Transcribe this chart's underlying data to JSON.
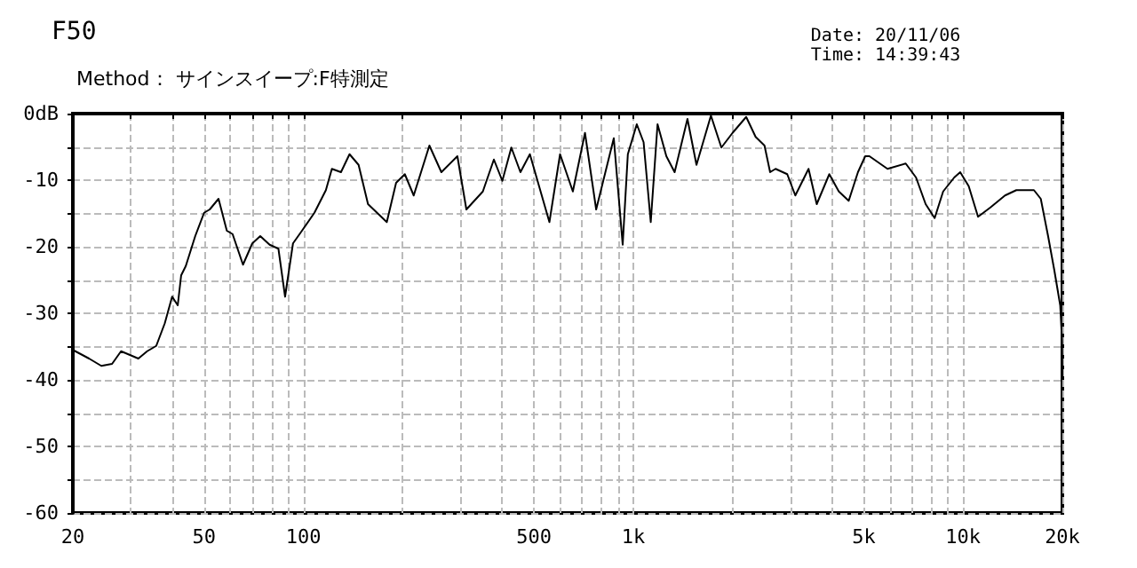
{
  "chart_data": {
    "type": "line",
    "title": "F50",
    "annotations": [
      "Method： サインスイープ:F特測定",
      "Date: 20/11/06\nTime: 14:39:43"
    ],
    "log": "x",
    "grid": true,
    "marker": "none",
    "line_style": "solid",
    "xlim": [
      20,
      20000
    ],
    "xticks": [
      20,
      {
        "value": 30,
        "label": null
      },
      {
        "value": 40,
        "label": null
      },
      50,
      {
        "value": 60,
        "label": null
      },
      {
        "value": 70,
        "label": null
      },
      {
        "value": 80,
        "label": null
      },
      {
        "value": 90,
        "label": null
      },
      100,
      {
        "value": 200,
        "label": null
      },
      {
        "value": 300,
        "label": null
      },
      {
        "value": 400,
        "label": null
      },
      500,
      {
        "value": 600,
        "label": null
      },
      {
        "value": 700,
        "label": null
      },
      {
        "value": 800,
        "label": null
      },
      {
        "value": 900,
        "label": null
      },
      {
        "value": 1000,
        "label": "1k"
      },
      {
        "value": 2000,
        "label": null
      },
      {
        "value": 3000,
        "label": null
      },
      {
        "value": 4000,
        "label": null
      },
      {
        "value": 5000,
        "label": "5k"
      },
      {
        "value": 6000,
        "label": null
      },
      {
        "value": 7000,
        "label": null
      },
      {
        "value": 8000,
        "label": null
      },
      {
        "value": 9000,
        "label": null
      },
      {
        "value": 10000,
        "label": "10k"
      },
      {
        "value": 20000,
        "label": "20k"
      }
    ],
    "ylim": [
      -60,
      0
    ],
    "yticks": [
      -60,
      {
        "value": -55,
        "label": null
      },
      -50,
      {
        "value": -45,
        "label": null
      },
      -40,
      {
        "value": -35,
        "label": null
      },
      -30,
      {
        "value": -25,
        "label": null
      },
      -20,
      {
        "value": -15,
        "label": null
      },
      -10,
      {
        "value": -5,
        "label": null
      },
      {
        "value": 0,
        "label": "0dB"
      }
    ],
    "series": [
      {
        "color": "#000000",
        "x": [
          20,
          22.4,
          24.4,
          26.3,
          28,
          31.6,
          33.6,
          35.8,
          38,
          40,
          41.6,
          42.6,
          44,
          47,
          50,
          52,
          55.3,
          58.6,
          61,
          65.6,
          70,
          74,
          79,
          84,
          88,
          93,
          99,
          108,
          117,
          122,
          130,
          138,
          147,
          157,
          179,
          191,
          203,
          216,
          241,
          262,
          293,
          312,
          350,
          378,
          401,
          427,
          455,
          486,
          557,
          600,
          656,
          714,
          772,
          873,
          929,
          963,
          1025,
          1075,
          1130,
          1185,
          1260,
          1335,
          1460,
          1555,
          1720,
          1850,
          2000,
          2200,
          2350,
          2500,
          2600,
          2700,
          2930,
          3100,
          3400,
          3600,
          3930,
          4200,
          4500,
          4800,
          5050,
          5200,
          5900,
          6700,
          7200,
          7700,
          8200,
          8700,
          9400,
          9800,
          10400,
          11100,
          12100,
          13400,
          14500,
          16400,
          17200,
          18100,
          18900,
          19700,
          19950,
          20000
        ],
        "values": [
          -35.5,
          -36.8,
          -37.9,
          -37.6,
          -35.7,
          -36.8,
          -35.7,
          -34.9,
          -31.5,
          -27.5,
          -28.8,
          -24.3,
          -22.9,
          -18.4,
          -14.9,
          -14.4,
          -12.8,
          -17.6,
          -18.1,
          -22.7,
          -19.5,
          -18.4,
          -19.7,
          -20.3,
          -27.5,
          -19.5,
          -17.6,
          -14.9,
          -11.5,
          -8.3,
          -8.8,
          -6.1,
          -7.7,
          -13.6,
          -16.3,
          -10.4,
          -9.1,
          -12.3,
          -4.8,
          -8.8,
          -6.4,
          -14.4,
          -11.7,
          -6.9,
          -10.1,
          -5.1,
          -8.8,
          -6.1,
          -16.3,
          -6.1,
          -11.7,
          -2.9,
          -14.4,
          -3.7,
          -19.7,
          -6.1,
          -1.6,
          -4.3,
          -16.3,
          -1.6,
          -6.4,
          -8.8,
          -0.8,
          -7.7,
          -0.3,
          -5.1,
          -2.9,
          -0.5,
          -3.5,
          -4.8,
          -8.8,
          -8.3,
          -9.1,
          -12.3,
          -8.3,
          -13.6,
          -9.1,
          -11.7,
          -13.1,
          -8.8,
          -6.4,
          -6.4,
          -8.3,
          -7.5,
          -9.6,
          -13.6,
          -15.7,
          -11.7,
          -9.6,
          -8.8,
          -10.9,
          -15.5,
          -14.1,
          -12.3,
          -11.5,
          -11.5,
          -12.8,
          -18.4,
          -23.5,
          -28.8,
          -34.1,
          -40
        ]
      }
    ]
  }
}
